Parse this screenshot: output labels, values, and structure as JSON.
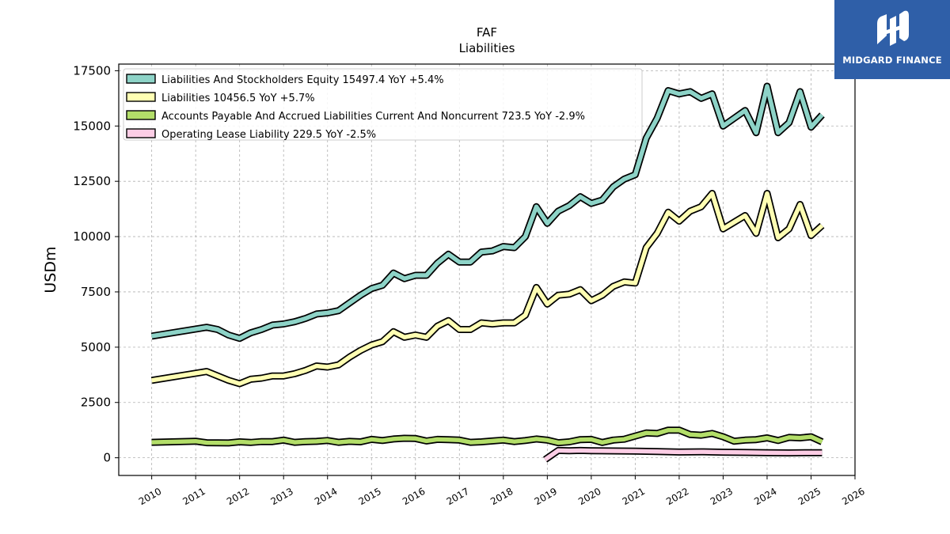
{
  "header": {
    "title": "FAF",
    "subtitle": "Liabilities"
  },
  "branding": {
    "logo_text": "MIDGARD FINANCE",
    "logo_bg": "#2f5fa8"
  },
  "chart_data": {
    "type": "line",
    "title": "FAF",
    "subtitle": "Liabilities",
    "ylabel": "USDm",
    "xlabel": "",
    "xlim": [
      2009.25,
      2026.0
    ],
    "ylim": [
      -800,
      17800
    ],
    "yticks": [
      0,
      2500,
      5000,
      7500,
      10000,
      12500,
      15000,
      17500
    ],
    "xticks": [
      2010,
      2011,
      2012,
      2013,
      2014,
      2015,
      2016,
      2017,
      2018,
      2019,
      2020,
      2021,
      2022,
      2023,
      2024,
      2025,
      2026
    ],
    "grid": true,
    "legend_position": "top-left",
    "series": [
      {
        "name": "Liabilities And Stockholders Equity  15497.4 YoY +5.4%",
        "color": "#8dd3c7",
        "points": [
          [
            2010.0,
            5500
          ],
          [
            2011.25,
            5900
          ],
          [
            2011.5,
            5800
          ],
          [
            2011.75,
            5550
          ],
          [
            2012.0,
            5400
          ],
          [
            2012.25,
            5650
          ],
          [
            2012.5,
            5800
          ],
          [
            2012.75,
            6000
          ],
          [
            2013.0,
            6050
          ],
          [
            2013.25,
            6150
          ],
          [
            2013.5,
            6300
          ],
          [
            2013.75,
            6500
          ],
          [
            2014.0,
            6550
          ],
          [
            2014.25,
            6650
          ],
          [
            2014.5,
            7000
          ],
          [
            2014.75,
            7350
          ],
          [
            2015.0,
            7650
          ],
          [
            2015.25,
            7800
          ],
          [
            2015.5,
            8350
          ],
          [
            2015.75,
            8100
          ],
          [
            2016.0,
            8250
          ],
          [
            2016.25,
            8250
          ],
          [
            2016.5,
            8800
          ],
          [
            2016.75,
            9200
          ],
          [
            2017.0,
            8850
          ],
          [
            2017.25,
            8850
          ],
          [
            2017.5,
            9300
          ],
          [
            2017.75,
            9350
          ],
          [
            2018.0,
            9550
          ],
          [
            2018.25,
            9500
          ],
          [
            2018.5,
            10000
          ],
          [
            2018.75,
            11350
          ],
          [
            2019.0,
            10600
          ],
          [
            2019.25,
            11150
          ],
          [
            2019.5,
            11400
          ],
          [
            2019.75,
            11800
          ],
          [
            2020.0,
            11500
          ],
          [
            2020.25,
            11650
          ],
          [
            2020.5,
            12250
          ],
          [
            2020.75,
            12600
          ],
          [
            2021.0,
            12800
          ],
          [
            2021.25,
            14450
          ],
          [
            2021.5,
            15350
          ],
          [
            2021.75,
            16600
          ],
          [
            2022.0,
            16450
          ],
          [
            2022.25,
            16550
          ],
          [
            2022.5,
            16250
          ],
          [
            2022.75,
            16450
          ],
          [
            2023.0,
            15000
          ],
          [
            2023.25,
            15350
          ],
          [
            2023.5,
            15700
          ],
          [
            2023.75,
            14700
          ],
          [
            2024.0,
            16800
          ],
          [
            2024.25,
            14700
          ],
          [
            2024.5,
            15150
          ],
          [
            2024.75,
            16550
          ],
          [
            2025.0,
            14950
          ],
          [
            2025.25,
            15500
          ]
        ]
      },
      {
        "name": "Liabilities  10456.5 YoY +5.7%",
        "color": "#ffffb3",
        "points": [
          [
            2010.0,
            3500
          ],
          [
            2011.25,
            3900
          ],
          [
            2011.5,
            3700
          ],
          [
            2011.75,
            3500
          ],
          [
            2012.0,
            3350
          ],
          [
            2012.25,
            3550
          ],
          [
            2012.5,
            3600
          ],
          [
            2012.75,
            3700
          ],
          [
            2013.0,
            3700
          ],
          [
            2013.25,
            3800
          ],
          [
            2013.5,
            3950
          ],
          [
            2013.75,
            4150
          ],
          [
            2014.0,
            4100
          ],
          [
            2014.25,
            4200
          ],
          [
            2014.5,
            4550
          ],
          [
            2014.75,
            4850
          ],
          [
            2015.0,
            5100
          ],
          [
            2015.25,
            5250
          ],
          [
            2015.5,
            5700
          ],
          [
            2015.75,
            5450
          ],
          [
            2016.0,
            5550
          ],
          [
            2016.25,
            5450
          ],
          [
            2016.5,
            5950
          ],
          [
            2016.75,
            6200
          ],
          [
            2017.0,
            5800
          ],
          [
            2017.25,
            5800
          ],
          [
            2017.5,
            6100
          ],
          [
            2017.75,
            6050
          ],
          [
            2018.0,
            6100
          ],
          [
            2018.25,
            6100
          ],
          [
            2018.5,
            6450
          ],
          [
            2018.75,
            7700
          ],
          [
            2019.0,
            6950
          ],
          [
            2019.25,
            7350
          ],
          [
            2019.5,
            7400
          ],
          [
            2019.75,
            7600
          ],
          [
            2020.0,
            7100
          ],
          [
            2020.25,
            7350
          ],
          [
            2020.5,
            7750
          ],
          [
            2020.75,
            7950
          ],
          [
            2021.0,
            7900
          ],
          [
            2021.25,
            9500
          ],
          [
            2021.5,
            10150
          ],
          [
            2021.75,
            11100
          ],
          [
            2022.0,
            10700
          ],
          [
            2022.25,
            11150
          ],
          [
            2022.5,
            11350
          ],
          [
            2022.75,
            11950
          ],
          [
            2023.0,
            10350
          ],
          [
            2023.25,
            10650
          ],
          [
            2023.5,
            10950
          ],
          [
            2023.75,
            10150
          ],
          [
            2024.0,
            11950
          ],
          [
            2024.25,
            9950
          ],
          [
            2024.5,
            10350
          ],
          [
            2024.75,
            11450
          ],
          [
            2025.0,
            10050
          ],
          [
            2025.25,
            10500
          ]
        ]
      },
      {
        "name": "Accounts Payable And Accrued Liabilities Current And Noncurrent  723.5 YoY -2.9%",
        "color": "#b3de69",
        "points": [
          [
            2010.0,
            700
          ],
          [
            2011.0,
            750
          ],
          [
            2011.25,
            680
          ],
          [
            2011.75,
            670
          ],
          [
            2012.0,
            720
          ],
          [
            2012.25,
            690
          ],
          [
            2012.5,
            730
          ],
          [
            2012.75,
            730
          ],
          [
            2013.0,
            800
          ],
          [
            2013.25,
            700
          ],
          [
            2013.5,
            730
          ],
          [
            2013.75,
            740
          ],
          [
            2014.0,
            780
          ],
          [
            2014.25,
            700
          ],
          [
            2014.5,
            740
          ],
          [
            2014.75,
            720
          ],
          [
            2015.0,
            830
          ],
          [
            2015.25,
            780
          ],
          [
            2015.5,
            850
          ],
          [
            2015.75,
            880
          ],
          [
            2016.0,
            870
          ],
          [
            2016.25,
            760
          ],
          [
            2016.5,
            830
          ],
          [
            2016.75,
            820
          ],
          [
            2017.0,
            800
          ],
          [
            2017.25,
            700
          ],
          [
            2017.5,
            720
          ],
          [
            2017.75,
            760
          ],
          [
            2018.0,
            800
          ],
          [
            2018.25,
            730
          ],
          [
            2018.5,
            780
          ],
          [
            2018.75,
            850
          ],
          [
            2019.0,
            800
          ],
          [
            2019.25,
            680
          ],
          [
            2019.5,
            720
          ],
          [
            2019.75,
            820
          ],
          [
            2020.0,
            830
          ],
          [
            2020.25,
            690
          ],
          [
            2020.5,
            800
          ],
          [
            2020.75,
            840
          ],
          [
            2021.0,
            980
          ],
          [
            2021.25,
            1120
          ],
          [
            2021.5,
            1100
          ],
          [
            2021.75,
            1250
          ],
          [
            2022.0,
            1250
          ],
          [
            2022.25,
            1050
          ],
          [
            2022.5,
            1020
          ],
          [
            2022.75,
            1100
          ],
          [
            2023.0,
            950
          ],
          [
            2023.25,
            750
          ],
          [
            2023.5,
            800
          ],
          [
            2023.75,
            820
          ],
          [
            2024.0,
            900
          ],
          [
            2024.25,
            780
          ],
          [
            2024.5,
            920
          ],
          [
            2024.75,
            900
          ],
          [
            2025.0,
            950
          ],
          [
            2025.25,
            720
          ]
        ]
      },
      {
        "name": "Operating Lease Liability  229.5 YoY -2.5%",
        "color": "#fccde5",
        "points": [
          [
            2018.95,
            -80
          ],
          [
            2019.25,
            330
          ],
          [
            2019.5,
            320
          ],
          [
            2019.75,
            330
          ],
          [
            2020.0,
            320
          ],
          [
            2020.5,
            310
          ],
          [
            2021.0,
            300
          ],
          [
            2021.5,
            280
          ],
          [
            2022.0,
            260
          ],
          [
            2022.5,
            270
          ],
          [
            2023.0,
            250
          ],
          [
            2023.5,
            240
          ],
          [
            2024.0,
            230
          ],
          [
            2024.5,
            220
          ],
          [
            2025.0,
            230
          ],
          [
            2025.25,
            230
          ]
        ]
      }
    ]
  }
}
